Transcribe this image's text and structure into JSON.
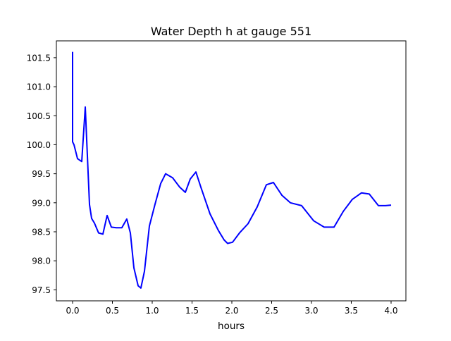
{
  "chart_data": {
    "type": "line",
    "title": "Water Depth h at gauge 551",
    "xlabel": "hours",
    "ylabel": "",
    "xlim": [
      -0.2035,
      4.186
    ],
    "ylim": [
      97.31,
      101.79
    ],
    "xticks": [
      0.0,
      0.5,
      1.0,
      1.5,
      2.0,
      2.5,
      3.0,
      3.5,
      4.0
    ],
    "xtick_labels": [
      "0.0",
      "0.5",
      "1.0",
      "1.5",
      "2.0",
      "2.5",
      "3.0",
      "3.5",
      "4.0"
    ],
    "yticks": [
      97.5,
      98.0,
      98.5,
      99.0,
      99.5,
      100.0,
      100.5,
      101.0,
      101.5
    ],
    "ytick_labels": [
      "97.5",
      "98.0",
      "98.5",
      "99.0",
      "99.5",
      "100.0",
      "100.5",
      "101.0",
      "101.5"
    ],
    "grid": false,
    "series": [
      {
        "name": "h",
        "color": "#0000ff",
        "x": [
          0,
          0,
          0.018,
          0.062,
          0.115,
          0.159,
          0.212,
          0.239,
          0.274,
          0.327,
          0.381,
          0.434,
          0.487,
          0.549,
          0.619,
          0.681,
          0.726,
          0.77,
          0.823,
          0.858,
          0.903,
          0.965,
          1.035,
          1.106,
          1.168,
          1.257,
          1.345,
          1.416,
          1.478,
          1.549,
          1.611,
          1.726,
          1.832,
          1.903,
          1.947,
          2.009,
          2.097,
          2.204,
          2.319,
          2.434,
          2.522,
          2.628,
          2.735,
          2.876,
          3.027,
          3.159,
          3.283,
          3.398,
          3.513,
          3.628,
          3.726,
          3.841,
          3.929,
          4.0
        ],
        "y": [
          101.6,
          100.05,
          100.0,
          99.76,
          99.71,
          100.65,
          98.97,
          98.73,
          98.65,
          98.48,
          98.46,
          98.78,
          98.58,
          98.57,
          98.57,
          98.72,
          98.48,
          97.88,
          97.57,
          97.53,
          97.82,
          98.6,
          98.97,
          99.33,
          99.5,
          99.43,
          99.27,
          99.18,
          99.41,
          99.53,
          99.27,
          98.81,
          98.52,
          98.36,
          98.3,
          98.32,
          98.48,
          98.64,
          98.93,
          99.31,
          99.35,
          99.13,
          99.0,
          98.95,
          98.69,
          98.58,
          98.58,
          98.85,
          99.06,
          99.17,
          99.15,
          98.95,
          98.95,
          98.96
        ]
      }
    ]
  }
}
